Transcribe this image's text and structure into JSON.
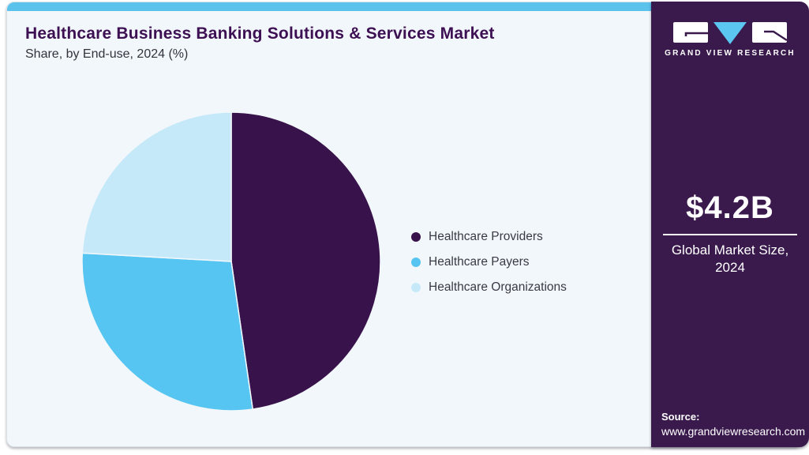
{
  "header": {
    "title": "Healthcare Business Banking Solutions & Services Market",
    "subtitle": "Share, by End-use, 2024 (%)"
  },
  "chart_data": {
    "type": "pie",
    "title": "Healthcare Business Banking Solutions & Services Market Share, by End-use, 2024 (%)",
    "labels": [
      "Healthcare Providers",
      "Healthcare Payers",
      "Healthcare Organizations"
    ],
    "values": [
      47.7,
      28.2,
      24.1
    ],
    "unit": "%",
    "colors": [
      "#38124A",
      "#56C5F1",
      "#C5E9F9"
    ],
    "start_angle_deg": 0,
    "direction": "clockwise",
    "legend_position": "right",
    "data_labels_shown": false
  },
  "colors": {
    "accent_bar": "#5BC2EC",
    "card_background": "#F2F7FB",
    "sidebar_background": "#3A1A4D",
    "title_text": "#3D1053",
    "slice_separator": "#F2F7FB"
  },
  "sidebar": {
    "logo_text": "GRAND VIEW RESEARCH",
    "market_size": "$4.2B",
    "market_label_line1": "Global Market Size,",
    "market_label_line2": "2024",
    "source_label": "Source:",
    "source_url": "www.grandviewresearch.com"
  }
}
